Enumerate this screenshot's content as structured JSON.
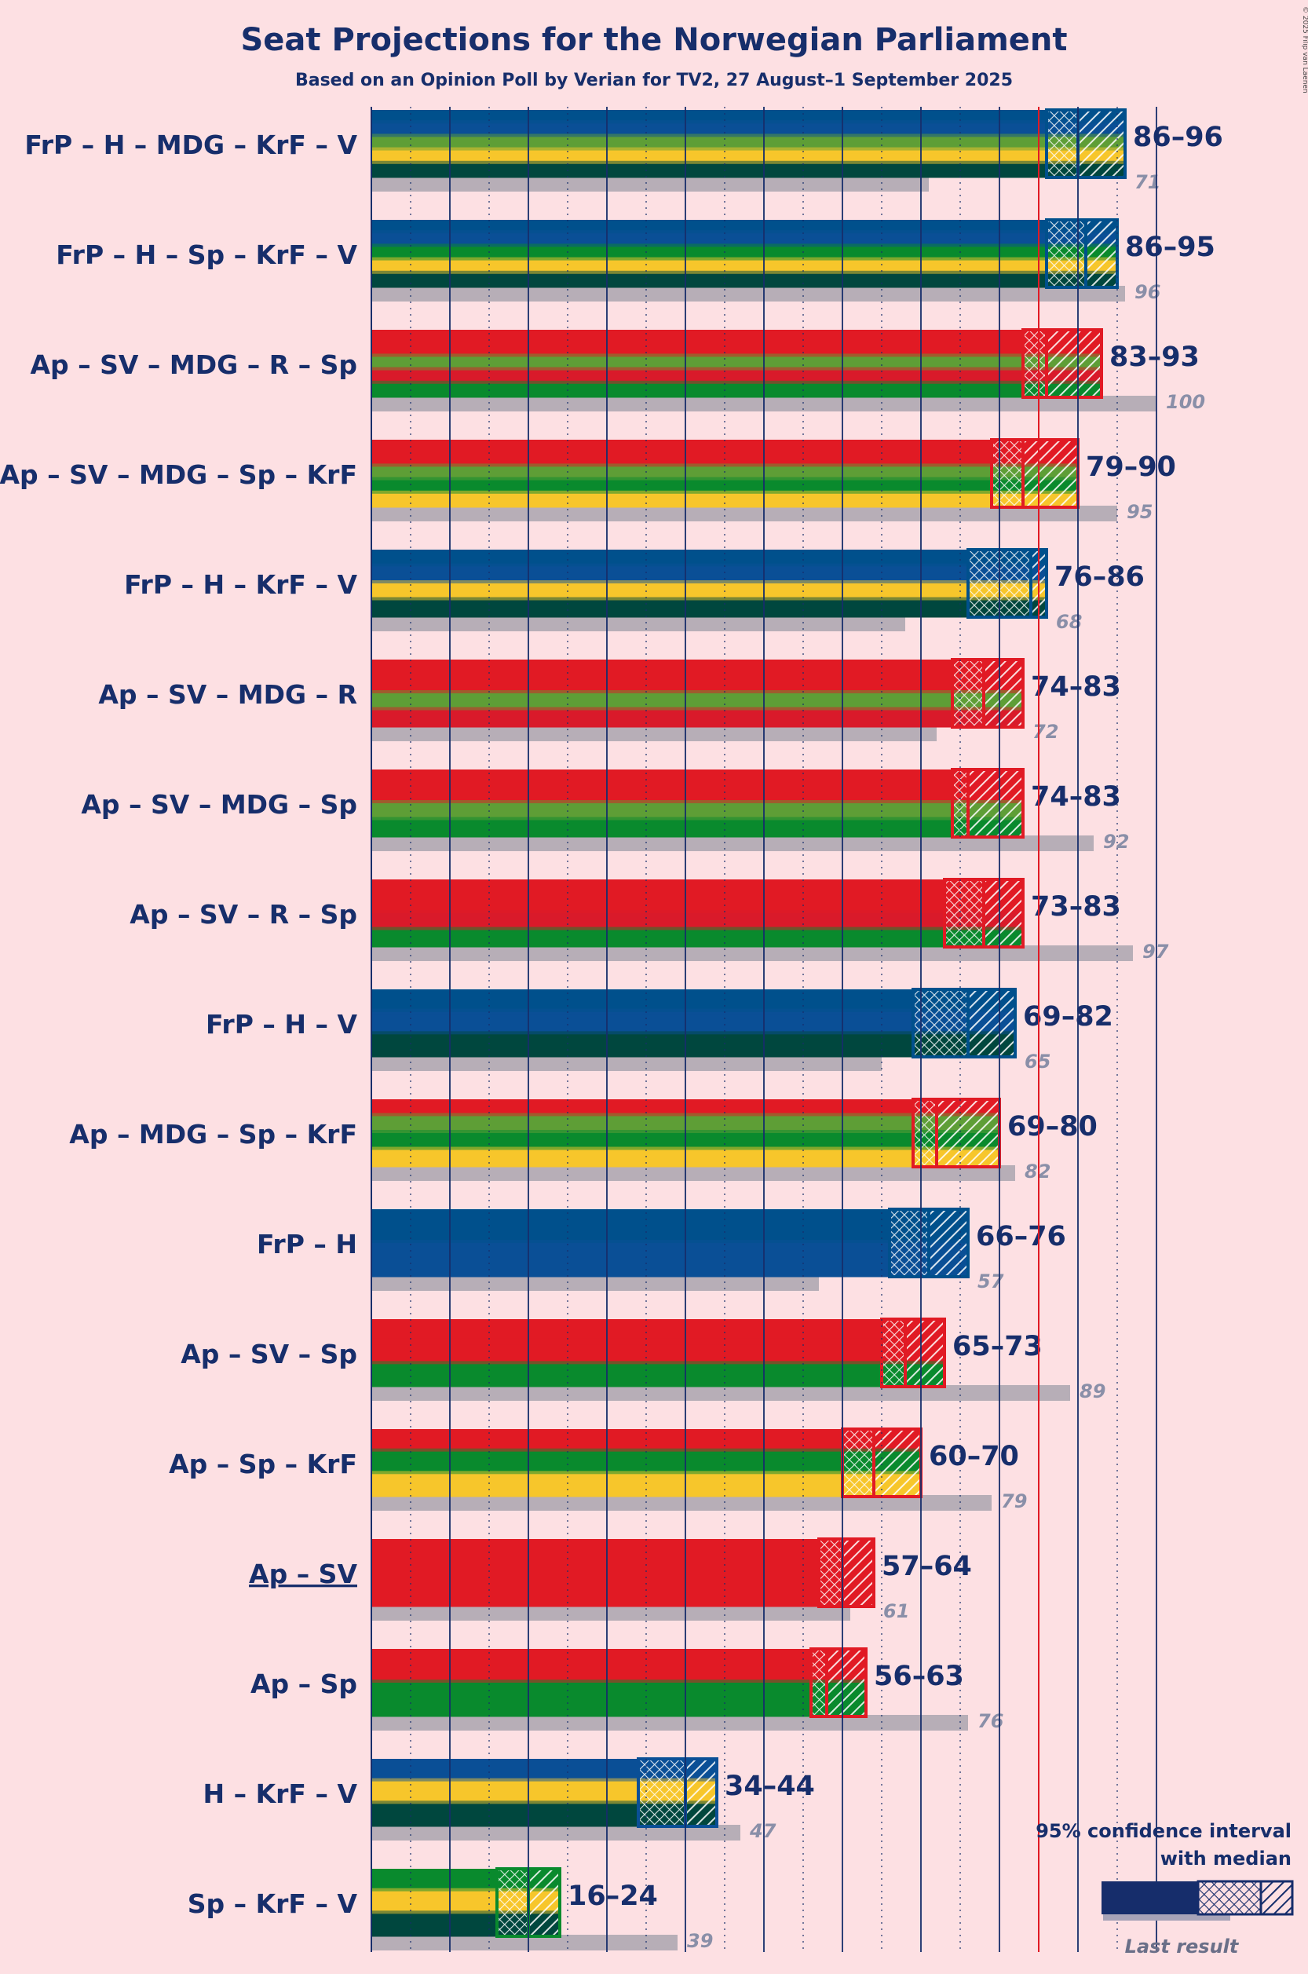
{
  "chart_data": {
    "type": "bar",
    "title": "Seat Projections for the Norwegian Parliament",
    "subtitle": "Based on an Opinion Poll by Verian for TV2, 27 August–1 September 2025",
    "copyright": "© 2025 Filip van Laenen",
    "xlim": [
      0,
      100
    ],
    "majority_threshold": 85,
    "legend": {
      "line1": "95% confidence interval",
      "line2": "with median",
      "last_result": "Last result"
    },
    "party_colors": {
      "FrP": "#00508c",
      "H": "#0a4f96",
      "MDG": "#5e9e36",
      "KrF": "#f7c62b",
      "V": "#00473e",
      "Sp": "#098a2d",
      "Ap": "#e11a24",
      "SV": "#e11a24",
      "R": "#d91a2a"
    },
    "coalitions": [
      {
        "label": "FrP – H – MDG – KrF – V",
        "parties": [
          "FrP",
          "H",
          "MDG",
          "KrF",
          "V"
        ],
        "low": 86,
        "median": 90,
        "high": 96,
        "last": 71,
        "range": "86–96",
        "last_text": "71",
        "underline": false
      },
      {
        "label": "FrP – H – Sp – KrF – V",
        "parties": [
          "FrP",
          "H",
          "Sp",
          "KrF",
          "V"
        ],
        "low": 86,
        "median": 91,
        "high": 95,
        "last": 96,
        "range": "86–95",
        "last_text": "96",
        "underline": false
      },
      {
        "label": "Ap – SV – MDG – R – Sp",
        "parties": [
          "Ap",
          "SV",
          "MDG",
          "R",
          "Sp"
        ],
        "low": 83,
        "median": 86,
        "high": 93,
        "last": 100,
        "range": "83–93",
        "last_text": "100",
        "underline": false
      },
      {
        "label": "Ap – SV – MDG – Sp – KrF",
        "parties": [
          "Ap",
          "SV",
          "MDG",
          "Sp",
          "KrF"
        ],
        "low": 79,
        "median": 83,
        "high": 90,
        "last": 95,
        "range": "79–90",
        "last_text": "95",
        "underline": false
      },
      {
        "label": "FrP – H – KrF – V",
        "parties": [
          "FrP",
          "H",
          "KrF",
          "V"
        ],
        "low": 76,
        "median": 84,
        "high": 86,
        "last": 68,
        "range": "76–86",
        "last_text": "68",
        "underline": false
      },
      {
        "label": "Ap – SV – MDG – R",
        "parties": [
          "Ap",
          "SV",
          "MDG",
          "R"
        ],
        "low": 74,
        "median": 78,
        "high": 83,
        "last": 72,
        "range": "74–83",
        "last_text": "72",
        "underline": false
      },
      {
        "label": "Ap – SV – MDG – Sp",
        "parties": [
          "Ap",
          "SV",
          "MDG",
          "Sp"
        ],
        "low": 74,
        "median": 76,
        "high": 83,
        "last": 92,
        "range": "74–83",
        "last_text": "92",
        "underline": false
      },
      {
        "label": "Ap – SV – R – Sp",
        "parties": [
          "Ap",
          "SV",
          "R",
          "Sp"
        ],
        "low": 73,
        "median": 78,
        "high": 83,
        "last": 97,
        "range": "73–83",
        "last_text": "97",
        "underline": false
      },
      {
        "label": "FrP – H – V",
        "parties": [
          "FrP",
          "H",
          "V"
        ],
        "low": 69,
        "median": 76,
        "high": 82,
        "last": 65,
        "range": "69–82",
        "last_text": "65",
        "underline": false
      },
      {
        "label": "Ap – MDG – Sp – KrF",
        "parties": [
          "Ap",
          "MDG",
          "Sp",
          "KrF"
        ],
        "low": 69,
        "median": 72,
        "high": 80,
        "last": 82,
        "range": "69–80",
        "last_text": "82",
        "underline": false
      },
      {
        "label": "FrP – H",
        "parties": [
          "FrP",
          "H"
        ],
        "low": 66,
        "median": 71,
        "high": 76,
        "last": 57,
        "range": "66–76",
        "last_text": "57",
        "underline": false
      },
      {
        "label": "Ap – SV – Sp",
        "parties": [
          "Ap",
          "SV",
          "Sp"
        ],
        "low": 65,
        "median": 68,
        "high": 73,
        "last": 89,
        "range": "65–73",
        "last_text": "89",
        "underline": false
      },
      {
        "label": "Ap – Sp – KrF",
        "parties": [
          "Ap",
          "Sp",
          "KrF"
        ],
        "low": 60,
        "median": 64,
        "high": 70,
        "last": 79,
        "range": "60–70",
        "last_text": "79",
        "underline": false
      },
      {
        "label": "Ap – SV",
        "parties": [
          "Ap",
          "SV"
        ],
        "low": 57,
        "median": 60,
        "high": 64,
        "last": 61,
        "range": "57–64",
        "last_text": "61",
        "underline": true
      },
      {
        "label": "Ap – Sp",
        "parties": [
          "Ap",
          "Sp"
        ],
        "low": 56,
        "median": 58,
        "high": 63,
        "last": 76,
        "range": "56–63",
        "last_text": "76",
        "underline": false
      },
      {
        "label": "H – KrF – V",
        "parties": [
          "H",
          "KrF",
          "V"
        ],
        "low": 34,
        "median": 40,
        "high": 44,
        "last": 47,
        "range": "34–44",
        "last_text": "47",
        "underline": false
      },
      {
        "label": "Sp – KrF – V",
        "parties": [
          "Sp",
          "KrF",
          "V"
        ],
        "low": 16,
        "median": 20,
        "high": 24,
        "last": 39,
        "range": "16–24",
        "last_text": "39",
        "underline": false
      }
    ]
  }
}
